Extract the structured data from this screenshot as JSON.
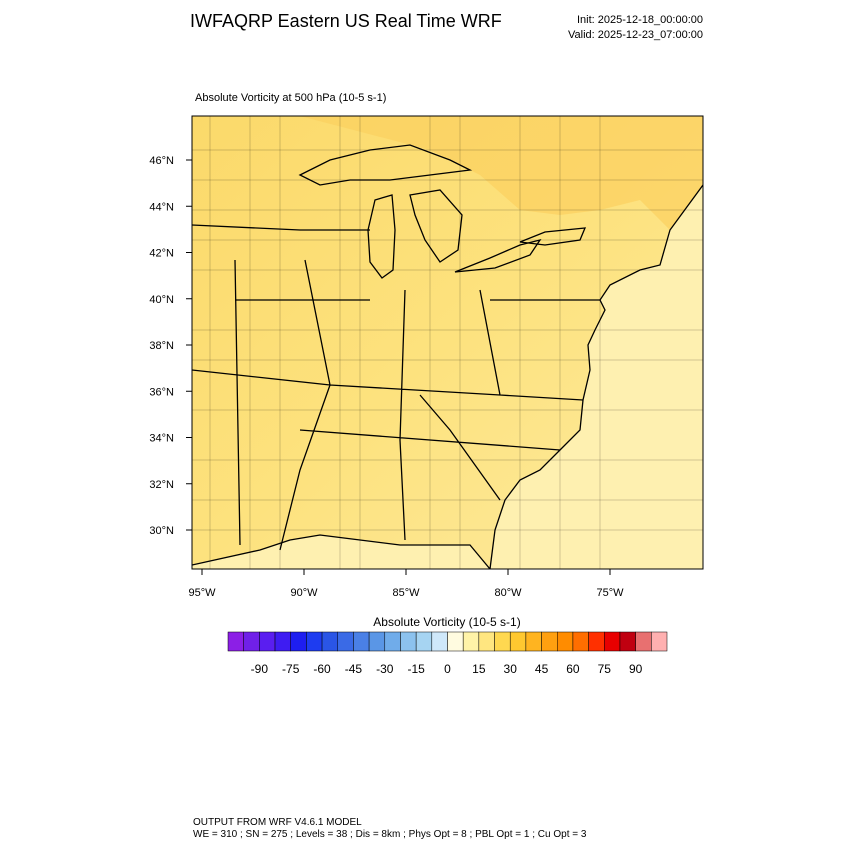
{
  "header": {
    "title": "IWFAQRP Eastern US Real Time WRF",
    "init": "Init: 2025-12-18_00:00:00",
    "valid": "Valid: 2025-12-23_07:00:00"
  },
  "plot": {
    "title": "Absolute Vorticity at 500 hPa   (10-5 s-1)",
    "lat_labels": [
      "46°N",
      "44°N",
      "42°N",
      "40°N",
      "38°N",
      "36°N",
      "34°N",
      "32°N",
      "30°N"
    ],
    "lon_labels": [
      "95°W",
      "90°W",
      "85°W",
      "80°W",
      "75°W"
    ]
  },
  "colorbar": {
    "title": "Absolute Vorticity  (10-5 s-1)",
    "lim": [
      -105,
      105
    ],
    "ticks": [
      -90,
      -75,
      -60,
      -45,
      -30,
      -15,
      0,
      15,
      30,
      45,
      60,
      75,
      90
    ],
    "colors": [
      "#8c1fe6",
      "#7020e8",
      "#5a1ef0",
      "#3e1cf2",
      "#1e1ef0",
      "#1e3cf0",
      "#2a55e6",
      "#3a6ae6",
      "#4a80e6",
      "#5a96e6",
      "#70acea",
      "#8cc2ee",
      "#a6d4f2",
      "#cfe8fa",
      "#fffbe0",
      "#fff3a8",
      "#ffe680",
      "#ffd850",
      "#ffc830",
      "#ffb420",
      "#ffa010",
      "#ff8c00",
      "#ff6e00",
      "#ff3000",
      "#e80000",
      "#c00010",
      "#e87070",
      "#ffb0b0"
    ]
  },
  "footer": {
    "line1": "OUTPUT FROM WRF V4.6.1 MODEL",
    "line2": "WE = 310 ; SN = 275 ; Levels = 38 ; Dis = 8km ; Phys Opt = 8 ; PBL Opt = 1 ; Cu Opt = 3"
  }
}
